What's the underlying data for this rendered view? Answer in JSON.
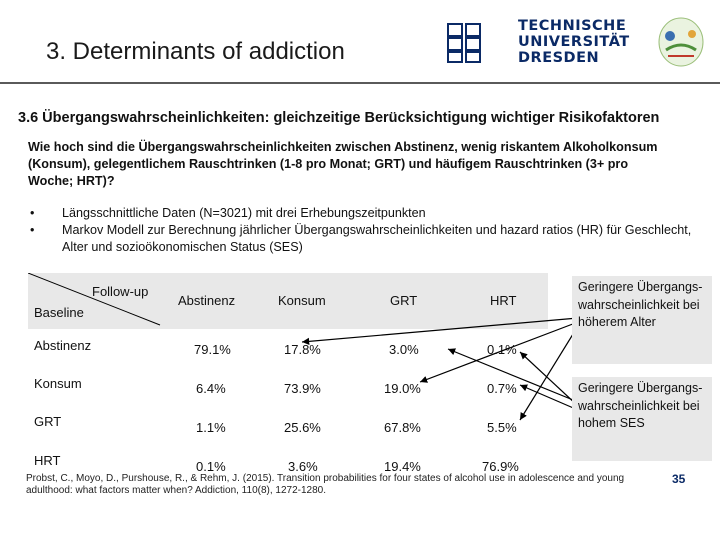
{
  "slide": {
    "title": "3. Determinants of addiction",
    "subheading": "3.6 Übergangswahrscheinlichkeiten: gleichzeitige Berücksichtigung wichtiger Risikofaktoren",
    "question": "Wie hoch sind die Übergangswahrscheinlichkeiten zwischen Abstinenz, wenig riskantem Alkoholkonsum (Konsum), gelegentlichem  Rauschtrinken (1-8 pro Monat; GRT) und häufigem Rauschtrinken (3+ pro Woche; HRT)?",
    "bullets": [
      "Längsschnittliche Daten (N=3021) mit drei Erhebungszeitpunkten",
      "Markov Modell zur Berechnung jährlicher Übergangswahrscheinlichkeiten und hazard ratios (HR) für Geschlecht, Alter und sozioökonomischen Status (SES)"
    ],
    "bullet_symbol": "•",
    "page_number": "35"
  },
  "logo": {
    "line1": "TECHNISCHE",
    "line2": "UNIVERSITÄT",
    "line3": "DRESDEN",
    "mark_letters": "TI\nUI\nDI"
  },
  "table": {
    "corner_follow": "Follow-up",
    "corner_baseline": "Baseline",
    "columns": [
      "Abstinenz",
      "Konsum",
      "GRT",
      "HRT"
    ],
    "rows": [
      {
        "label": "Abstinenz",
        "values": [
          "79.1%",
          "17.8%",
          "3.0%",
          "0.1%"
        ]
      },
      {
        "label": "Konsum",
        "values": [
          "6.4%",
          "73.9%",
          "19.0%",
          "0.7%"
        ]
      },
      {
        "label": "GRT",
        "values": [
          "1.1%",
          "25.6%",
          "67.8%",
          "5.5%"
        ]
      },
      {
        "label": "HRT",
        "values": [
          "0.1%",
          "3.6%",
          "19.4%",
          "76.9%"
        ]
      }
    ]
  },
  "notes": [
    "Geringere Übergangs-wahrscheinlichkeit bei höherem Alter",
    "Geringere Übergangs-wahrscheinlichkeit bei hohem SES"
  ],
  "citation": "Probst, C., Moyo, D., Purshouse, R., & Rehm, J. (2015). Transition probabilities for four states of alcohol use in adolescence and young adulthood: what factors matter when? Addiction, 110(8), 1272-1280.",
  "colors": {
    "header_bg": "#e8e8e8",
    "brand_blue": "#0b2a66",
    "rule": "#5a5a5a"
  }
}
